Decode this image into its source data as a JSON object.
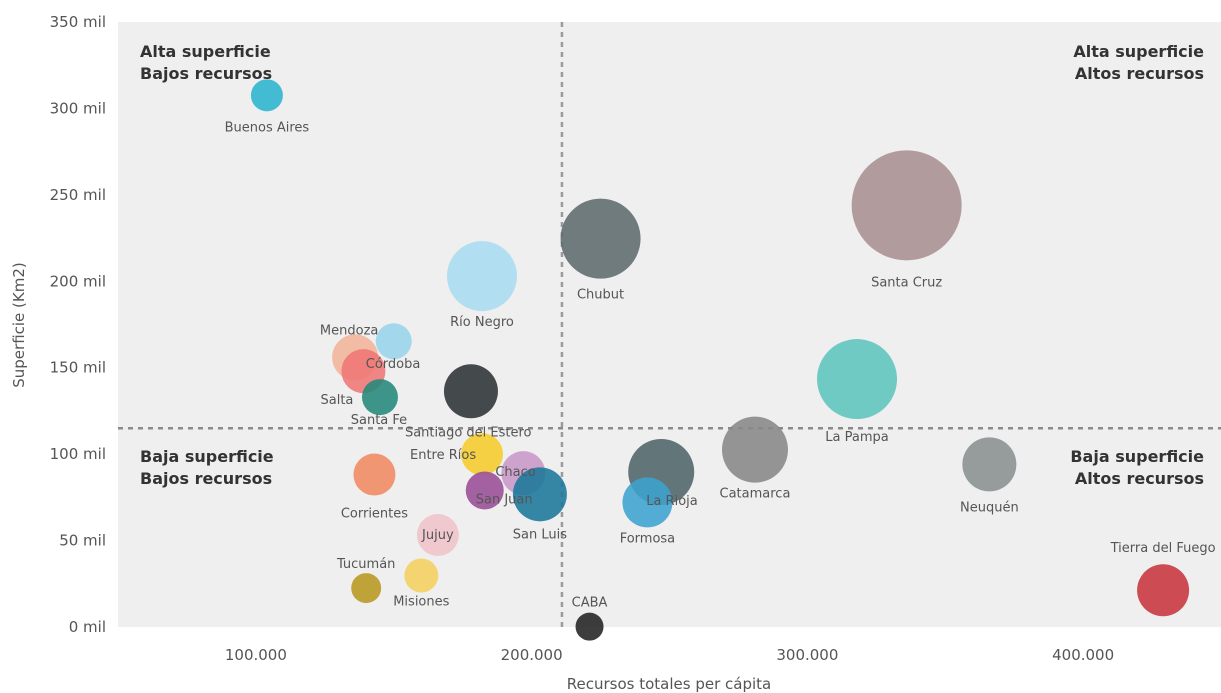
{
  "chart_data": {
    "type": "scatter",
    "xlabel": "Recursos totales per cápita",
    "ylabel": "Superficie (Km2)",
    "xlim": [
      50000,
      450000
    ],
    "ylim": [
      0,
      350000
    ],
    "x_ticks": [
      {
        "value": 100000,
        "label": "100.000"
      },
      {
        "value": 200000,
        "label": "200.000"
      },
      {
        "value": 300000,
        "label": "300.000"
      },
      {
        "value": 400000,
        "label": "400.000"
      }
    ],
    "y_ticks": [
      {
        "value": 0,
        "label": "0 mil"
      },
      {
        "value": 50000,
        "label": "50 mil"
      },
      {
        "value": 100000,
        "label": "100 mil"
      },
      {
        "value": 150000,
        "label": "150 mil"
      },
      {
        "value": 200000,
        "label": "200 mil"
      },
      {
        "value": 250000,
        "label": "250 mil"
      },
      {
        "value": 300000,
        "label": "300 mil"
      },
      {
        "value": 350000,
        "label": "350 mil"
      }
    ],
    "reference_lines": {
      "x": 211000,
      "y": 115000
    },
    "quadrants": [
      {
        "position": "top-left",
        "line1": "Alta superficie",
        "line2": "Bajos recursos"
      },
      {
        "position": "top-right",
        "line1": "Alta superficie",
        "line2": "Altos recursos"
      },
      {
        "position": "bottom-left",
        "line1": "Baja superficie",
        "line2": "Bajos recursos"
      },
      {
        "position": "bottom-right",
        "line1": "Baja superficie",
        "line2": "Altos recursos"
      }
    ],
    "points": [
      {
        "label": "Buenos Aires",
        "x": 104000,
        "y": 307571,
        "size": 16,
        "color": "#2bb5cf"
      },
      {
        "label": "Río Negro",
        "x": 182000,
        "y": 203013,
        "size": 35,
        "color": "#a8dcf0"
      },
      {
        "label": "Chubut",
        "x": 225000,
        "y": 224686,
        "size": 40,
        "color": "#5f6b6d"
      },
      {
        "label": "Santa Cruz",
        "x": 336000,
        "y": 243943,
        "size": 55,
        "color": "#a89092"
      },
      {
        "label": "Mendoza",
        "x": 136000,
        "y": 156000,
        "size": 23,
        "color": "#f3b49a"
      },
      {
        "label": "Córdoba",
        "x": 150000,
        "y": 165321,
        "size": 18,
        "color": "#98d4ec"
      },
      {
        "label": "Salta",
        "x": 139000,
        "y": 148000,
        "size": 22,
        "color": "#ef7676"
      },
      {
        "label": "Santa Fe",
        "x": 145000,
        "y": 133007,
        "size": 18,
        "color": "#23897a"
      },
      {
        "label": "Santiago del Estero",
        "x": 178000,
        "y": 136351,
        "size": 27,
        "color": "#2c3236"
      },
      {
        "label": "La Pampa",
        "x": 318000,
        "y": 143440,
        "size": 40,
        "color": "#5cc5bc"
      },
      {
        "label": "Catamarca",
        "x": 281000,
        "y": 102602,
        "size": 33,
        "color": "#888888"
      },
      {
        "label": "Neuquén",
        "x": 366000,
        "y": 94078,
        "size": 27,
        "color": "#8a9191"
      },
      {
        "label": "Corrientes",
        "x": 143000,
        "y": 88199,
        "size": 21,
        "color": "#f08a62"
      },
      {
        "label": "Entre Ríos",
        "x": 182000,
        "y": 100000,
        "size": 21,
        "color": "#f6cc2a"
      },
      {
        "label": "Chaco",
        "x": 197000,
        "y": 89000,
        "size": 22,
        "color": "#c899c9"
      },
      {
        "label": "San Juan",
        "x": 183000,
        "y": 79000,
        "size": 19,
        "color": "#9a4d97"
      },
      {
        "label": "San Luis",
        "x": 203000,
        "y": 76748,
        "size": 27,
        "color": "#1a779a"
      },
      {
        "label": "La Rioja",
        "x": 247000,
        "y": 89680,
        "size": 33,
        "color": "#4f6468"
      },
      {
        "label": "Formosa",
        "x": 242000,
        "y": 72066,
        "size": 25,
        "color": "#3ea3cf"
      },
      {
        "label": "Tucumán",
        "x": 140000,
        "y": 22524,
        "size": 15,
        "color": "#b89820"
      },
      {
        "label": "Jujuy",
        "x": 166000,
        "y": 53219,
        "size": 21,
        "color": "#f0c4cb"
      },
      {
        "label": "Misiones",
        "x": 160000,
        "y": 29801,
        "size": 17,
        "color": "#f5d060"
      },
      {
        "label": "CABA",
        "x": 221000,
        "y": 203,
        "size": 14,
        "color": "#222222"
      },
      {
        "label": "Tierra del Fuego",
        "x": 429000,
        "y": 21263,
        "size": 26,
        "color": "#c8343c"
      }
    ]
  }
}
